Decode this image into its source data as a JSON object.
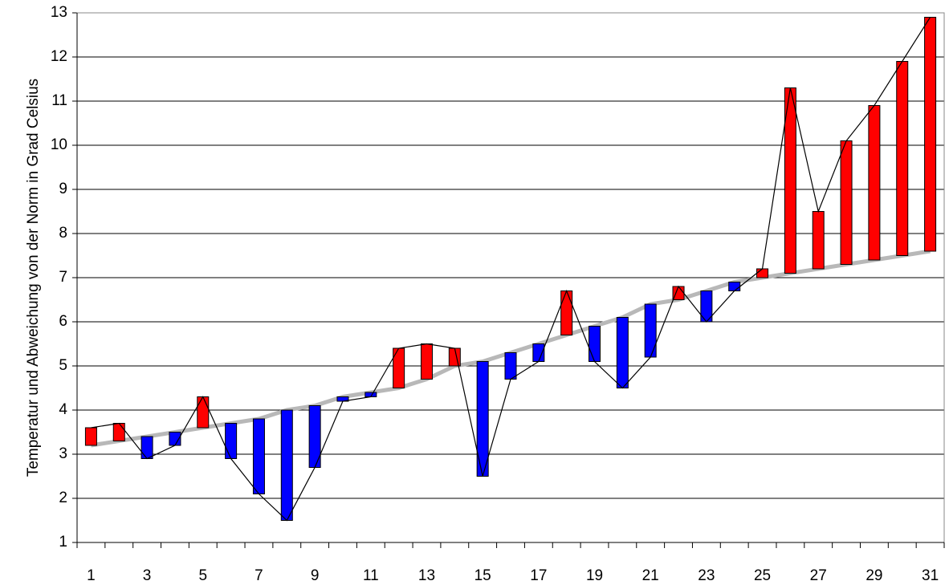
{
  "chart_data": {
    "type": "deviation",
    "y_label": "Temperatur und Abweichung von der Norm in Grad Celsius",
    "categories": [
      "1",
      null,
      "3",
      null,
      "5",
      null,
      "7",
      null,
      "9",
      null,
      "11",
      null,
      "13",
      null,
      "15",
      null,
      "17",
      null,
      "19",
      null,
      "21",
      null,
      "23",
      null,
      "25",
      null,
      "27",
      null,
      "29",
      null,
      "31"
    ],
    "series": [
      {
        "color": "#000000",
        "values": [
          3.6,
          3.7,
          2.9,
          3.2,
          4.3,
          2.9,
          2.1,
          1.5,
          2.7,
          4.2,
          4.3,
          5.4,
          5.5,
          5.4,
          2.5,
          4.7,
          5.1,
          6.7,
          5.1,
          4.5,
          5.2,
          6.8,
          6.0,
          6.7,
          7.2,
          11.3,
          8.5,
          10.1,
          10.9,
          11.9,
          12.9
        ]
      },
      {
        "color": "#b8b8b8",
        "values": [
          3.2,
          3.3,
          3.4,
          3.5,
          3.6,
          3.7,
          3.8,
          4.0,
          4.1,
          4.3,
          4.4,
          4.5,
          4.7,
          5.0,
          5.1,
          5.3,
          5.5,
          5.7,
          5.9,
          6.1,
          6.4,
          6.5,
          6.7,
          6.9,
          7.0,
          7.1,
          7.2,
          7.3,
          7.4,
          7.5,
          7.6
        ]
      }
    ],
    "above_color": "#ff0000",
    "below_color": "#0000ff",
    "ylim": [
      1,
      13
    ],
    "yticks": [
      1,
      2,
      3,
      4,
      5,
      6,
      7,
      8,
      9,
      10,
      11,
      12,
      13
    ],
    "grid": true
  }
}
